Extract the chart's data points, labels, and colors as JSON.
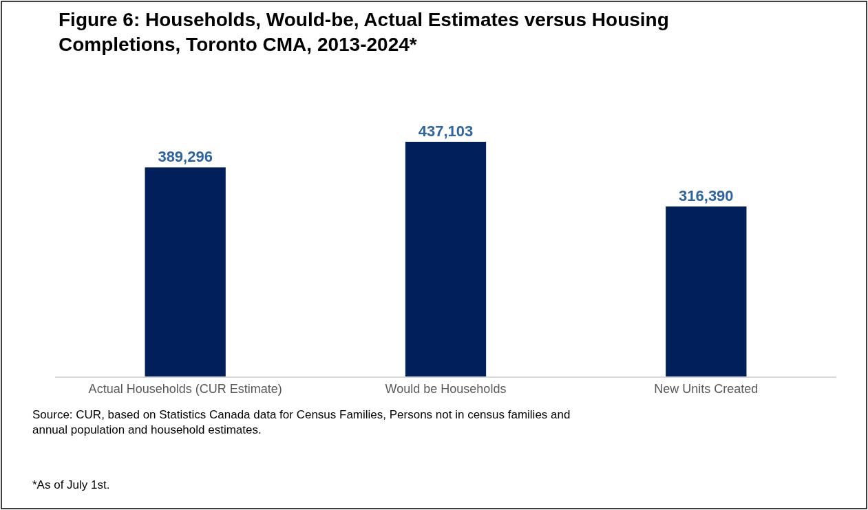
{
  "chart_data": {
    "type": "bar",
    "title": "Figure 6: Households, Would-be, Actual Estimates versus Housing Completions, Toronto CMA, 2013-2024*",
    "categories": [
      "Actual Households (CUR Estimate)",
      "Would be Households",
      "New Units Created"
    ],
    "values": [
      389296,
      437103,
      316390
    ],
    "color": "#001f5b",
    "value_labels": [
      "389,296",
      "437,103",
      "316,390"
    ],
    "annotations": [
      "Source: CUR, based on Statistics Canada data for Census Families, Persons not in census families and annual population and household estimates.",
      "*As of July 1st."
    ]
  }
}
